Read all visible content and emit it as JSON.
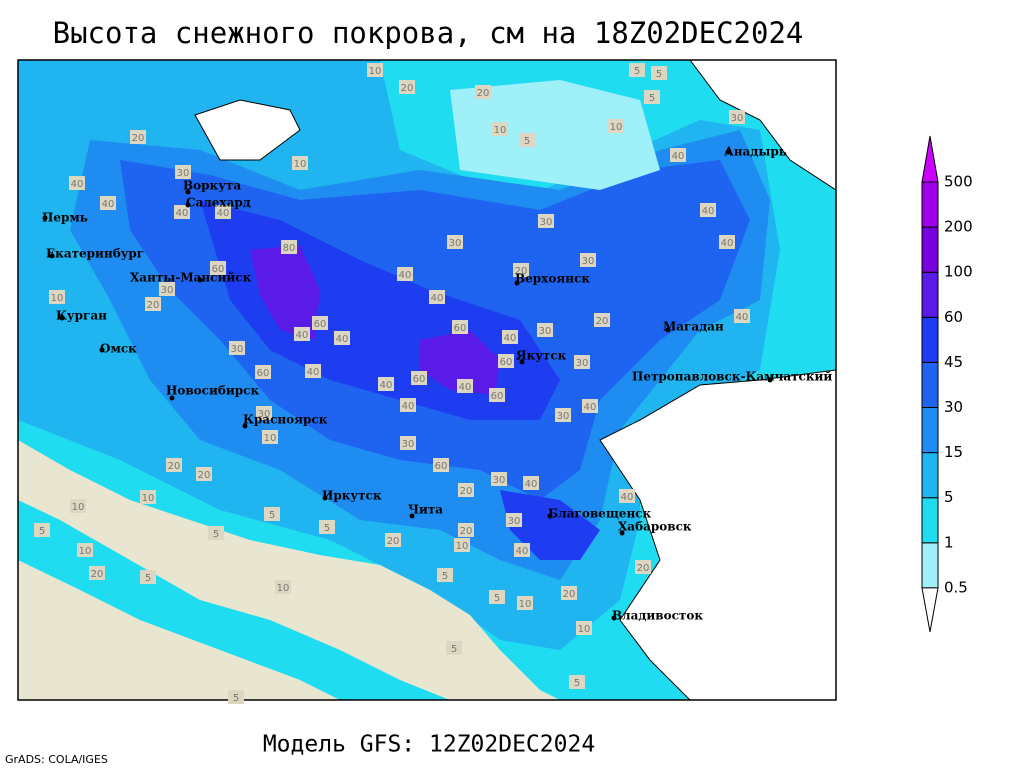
{
  "title": "Высота снежного покрова, см на 18Z02DEC2024",
  "footer": "Модель GFS: 12Z02DEC2024",
  "credit": "GrADS: COLA/IGES",
  "colorbar": {
    "levels": [
      0.5,
      1,
      5,
      15,
      30,
      45,
      60,
      100,
      200,
      500
    ],
    "colors": [
      "#ffffff",
      "#a0f0fa",
      "#20dcf0",
      "#20b4f0",
      "#1e8cf0",
      "#1e64f0",
      "#1e3cf0",
      "#5a1ae8",
      "#7a00e0",
      "#a000e8",
      "#cc00ff"
    ]
  },
  "cities": [
    "Воркута",
    "Салехард",
    "Пермь",
    "Екатеринбург",
    "Ханты-Мансийск",
    "Курган",
    "Омск",
    "Новосибирск",
    "Красноярск",
    "Иркутск",
    "Чита",
    "Верхоянск",
    "Якутск",
    "Магадан",
    "Анадырь",
    "Петропавловск-Камчатский",
    "Благовещенск",
    "Хабаровск",
    "Владивосток"
  ],
  "contour_labels": [
    10,
    20,
    20,
    10,
    5,
    10,
    5,
    5,
    5,
    30,
    10,
    40,
    40,
    40,
    40,
    40,
    20,
    30,
    40,
    40,
    40,
    80,
    60,
    30,
    20,
    10,
    30,
    30,
    30,
    20,
    40,
    40,
    60,
    40,
    30,
    20,
    40,
    60,
    40,
    30,
    60,
    40,
    40,
    60,
    40,
    60,
    60,
    40,
    30,
    40,
    30,
    30,
    10,
    20,
    30,
    60,
    30,
    40,
    20,
    40,
    30,
    20,
    40,
    20,
    20,
    10,
    10,
    5,
    5,
    10,
    20,
    5,
    5,
    10,
    5,
    10,
    20,
    5,
    10,
    5,
    5,
    20,
    5,
    5,
    10
  ]
}
